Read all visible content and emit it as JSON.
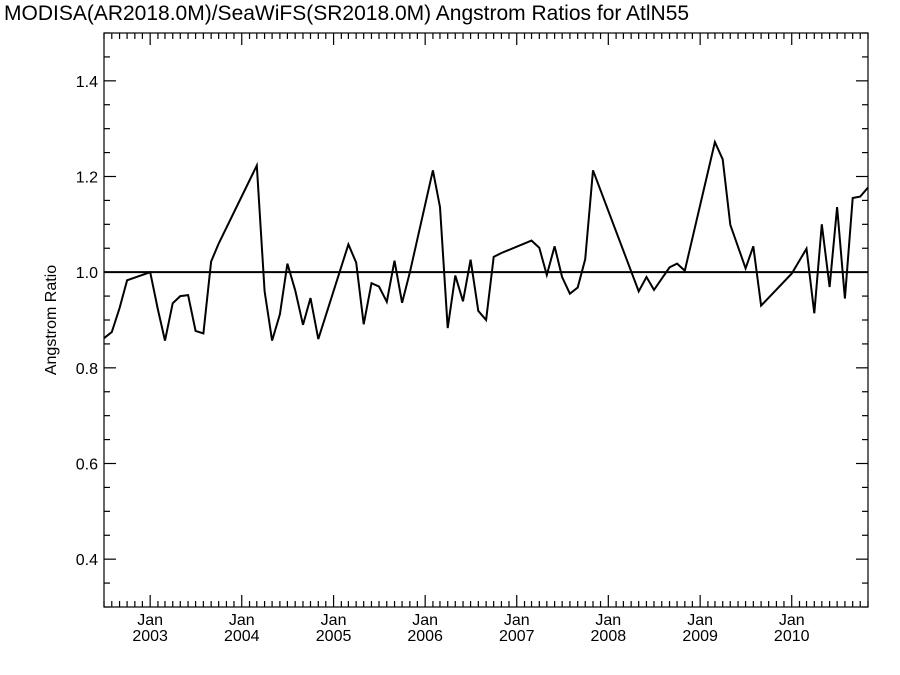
{
  "chart_data": {
    "type": "line",
    "title": "MODISA(AR2018.0M)/SeaWiFS(SR2018.0M)  Angstrom Ratios for AtlN55",
    "xlabel": "",
    "ylabel": "Angstrom Ratio",
    "xlim": [
      "2002-07-01",
      "2010-11-01"
    ],
    "ylim": [
      0.3,
      1.5
    ],
    "y_ticks": [
      0.4,
      0.6,
      0.8,
      1.0,
      1.2,
      1.4
    ],
    "y_tick_labels": [
      "0.4",
      "0.6",
      "0.8",
      "1.0",
      "1.2",
      "1.4"
    ],
    "x_ticks": [
      {
        "date": "2003-01-01",
        "month": "Jan",
        "year": "2003"
      },
      {
        "date": "2004-01-01",
        "month": "Jan",
        "year": "2004"
      },
      {
        "date": "2005-01-01",
        "month": "Jan",
        "year": "2005"
      },
      {
        "date": "2006-01-01",
        "month": "Jan",
        "year": "2006"
      },
      {
        "date": "2007-01-01",
        "month": "Jan",
        "year": "2007"
      },
      {
        "date": "2008-01-01",
        "month": "Jan",
        "year": "2008"
      },
      {
        "date": "2009-01-01",
        "month": "Jan",
        "year": "2009"
      },
      {
        "date": "2010-01-01",
        "month": "Jan",
        "year": "2010"
      }
    ],
    "reference_line": {
      "y": 1.0
    },
    "grid": false,
    "series": [
      {
        "x": [
          "2002-07-01",
          "2002-08-01",
          "2002-09-01",
          "2002-10-01",
          "2003-01-01",
          "2003-02-01",
          "2003-03-01",
          "2003-04-01",
          "2003-05-01",
          "2003-06-01",
          "2003-07-01",
          "2003-08-01",
          "2003-09-01",
          "2003-10-01",
          "2004-03-01",
          "2004-04-01",
          "2004-05-01",
          "2004-06-01",
          "2004-07-01",
          "2004-08-01",
          "2004-09-01",
          "2004-10-01",
          "2004-11-01",
          "2005-03-01",
          "2005-04-01",
          "2005-05-01",
          "2005-06-01",
          "2005-07-01",
          "2005-08-01",
          "2005-09-01",
          "2005-10-01",
          "2005-11-01",
          "2006-02-01",
          "2006-03-01",
          "2006-04-01",
          "2006-05-01",
          "2006-06-01",
          "2006-07-01",
          "2006-08-01",
          "2006-09-01",
          "2006-10-01",
          "2006-11-01",
          "2007-03-01",
          "2007-04-01",
          "2007-05-01",
          "2007-06-01",
          "2007-07-01",
          "2007-08-01",
          "2007-09-01",
          "2007-10-01",
          "2007-11-01",
          "2008-05-01",
          "2008-06-01",
          "2008-07-01",
          "2008-09-01",
          "2008-10-01",
          "2008-11-01",
          "2009-03-01",
          "2009-04-01",
          "2009-05-01",
          "2009-07-01",
          "2009-08-01",
          "2009-09-01",
          "2010-01-01",
          "2010-03-01",
          "2010-04-01",
          "2010-05-01",
          "2010-06-01",
          "2010-07-01",
          "2010-08-01",
          "2010-09-01",
          "2010-10-01",
          "2010-11-01"
        ],
        "y": [
          0.862,
          0.875,
          0.925,
          0.983,
          1.0,
          0.922,
          0.857,
          0.935,
          0.95,
          0.952,
          0.877,
          0.872,
          1.022,
          1.06,
          1.223,
          0.96,
          0.857,
          0.912,
          1.018,
          0.962,
          0.89,
          0.946,
          0.86,
          1.058,
          1.02,
          0.891,
          0.977,
          0.97,
          0.938,
          1.024,
          0.936,
          1.0,
          1.213,
          1.136,
          0.883,
          0.993,
          0.939,
          1.026,
          0.919,
          0.9,
          1.032,
          1.04,
          1.066,
          1.051,
          0.994,
          1.054,
          0.99,
          0.955,
          0.968,
          1.027,
          1.213,
          0.96,
          0.99,
          0.963,
          1.01,
          1.018,
          1.003,
          1.272,
          1.236,
          1.099,
          1.008,
          1.054,
          0.93,
          0.997,
          1.049,
          0.914,
          1.1,
          0.969,
          1.136,
          0.945,
          1.155,
          1.158,
          1.177
        ]
      }
    ]
  }
}
